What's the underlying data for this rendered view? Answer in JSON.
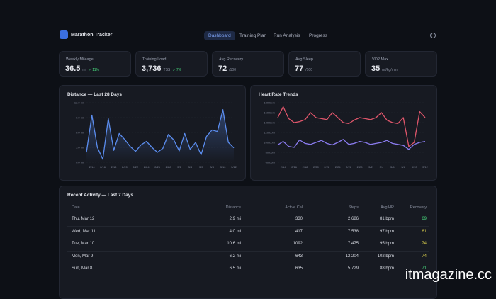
{
  "header": {
    "title": "Marathon Tracker",
    "nav": [
      "Dashboard",
      "Training Plan",
      "Run Analysis",
      "Progress"
    ]
  },
  "kpis": [
    {
      "label": "Weekly Mileage",
      "value": "36.5",
      "unit": "mi",
      "change": "↗ 11%"
    },
    {
      "label": "Training Load",
      "value": "3,736",
      "unit": "TSS",
      "change": "↗ 7%"
    },
    {
      "label": "Avg Recovery",
      "value": "72",
      "unit": "/100"
    },
    {
      "label": "Avg Sleep",
      "value": "77",
      "unit": "/100"
    },
    {
      "label": "VO2 Max",
      "value": "35",
      "unit": "ml/kg/min"
    }
  ],
  "chart_data": [
    {
      "type": "line",
      "title": "Distance — Last 28 Days",
      "area": true,
      "color": "#5b8def",
      "categories": [
        null,
        "2/14",
        null,
        "2/16",
        null,
        "2/18",
        null,
        "2/20",
        null,
        "2/22",
        null,
        "2/24",
        null,
        "2/26",
        null,
        "2/28",
        null,
        "3/2",
        null,
        "3/4",
        null,
        "3/6",
        null,
        "3/8",
        null,
        "3/10",
        null,
        "3/12"
      ],
      "values": [
        2.0,
        9.5,
        3.0,
        0.6,
        8.8,
        2.4,
        5.8,
        4.6,
        3.2,
        2.2,
        3.5,
        4.2,
        3.0,
        2.0,
        2.8,
        5.6,
        4.5,
        2.3,
        5.8,
        2.6,
        4.0,
        1.5,
        5.2,
        6.5,
        6.2,
        10.6,
        4.0,
        2.9
      ],
      "ylim": [
        0,
        12
      ],
      "yticks": [
        {
          "value": 0,
          "label": "0.0 mi"
        },
        {
          "value": 3,
          "label": "3.0 mi"
        },
        {
          "value": 6,
          "label": "6.0 mi"
        },
        {
          "value": 9,
          "label": "9.0 mi"
        },
        {
          "value": 12,
          "label": "12.0 mi"
        }
      ],
      "grid": true
    },
    {
      "type": "line",
      "title": "Heart Rate Trends",
      "categories": [
        null,
        "2/14",
        null,
        "2/16",
        null,
        "2/18",
        null,
        "2/20",
        null,
        "2/22",
        null,
        "2/24",
        null,
        "2/26",
        null,
        "2/28",
        null,
        "3/2",
        null,
        "3/4",
        null,
        "3/6",
        null,
        "3/8",
        null,
        "3/10",
        null,
        "3/12"
      ],
      "series": [
        {
          "color": "#e0566b",
          "values": [
            150,
            172,
            148,
            140,
            142,
            146,
            160,
            150,
            148,
            146,
            160,
            150,
            140,
            138,
            145,
            150,
            148,
            146,
            150,
            160,
            145,
            140,
            138,
            150,
            92,
            100,
            162,
            150
          ]
        },
        {
          "color": "#8b7cf0",
          "values": [
            95,
            102,
            92,
            90,
            105,
            98,
            96,
            100,
            104,
            98,
            95,
            100,
            106,
            96,
            98,
            102,
            100,
            96,
            98,
            100,
            104,
            98,
            96,
            94,
            86,
            96,
            100,
            102
          ]
        }
      ],
      "ylim": [
        60,
        180
      ],
      "yticks": [
        {
          "value": 60,
          "label": "60 bpm"
        },
        {
          "value": 80,
          "label": "80 bpm"
        },
        {
          "value": 100,
          "label": "100 bpm"
        },
        {
          "value": 120,
          "label": "120 bpm"
        },
        {
          "value": 140,
          "label": "140 bpm"
        },
        {
          "value": 160,
          "label": "160 bpm"
        },
        {
          "value": 180,
          "label": "180 bpm"
        }
      ],
      "grid": true
    }
  ],
  "table": {
    "title": "Recent Activity — Last 7 Days",
    "columns": [
      "Date",
      "Distance",
      "Active Cal",
      "Steps",
      "Avg HR",
      "Recovery"
    ],
    "rows": [
      [
        "Thu, Mar 12",
        "2.9 mi",
        "330",
        "2,686",
        "81 bpm",
        "69"
      ],
      [
        "Wed, Mar 11",
        "4.0 mi",
        "417",
        "7,538",
        "97 bpm",
        "61"
      ],
      [
        "Tue, Mar 10",
        "10.6 mi",
        "1092",
        "7,475",
        "95 bpm",
        "74"
      ],
      [
        "Mon, Mar 9",
        "6.2 mi",
        "643",
        "12,204",
        "102 bpm",
        "74"
      ],
      [
        "Sun, Mar 8",
        "6.5 mi",
        "635",
        "5,729",
        "88 bpm",
        "71"
      ]
    ]
  },
  "watermark": "itmagazine.cc"
}
